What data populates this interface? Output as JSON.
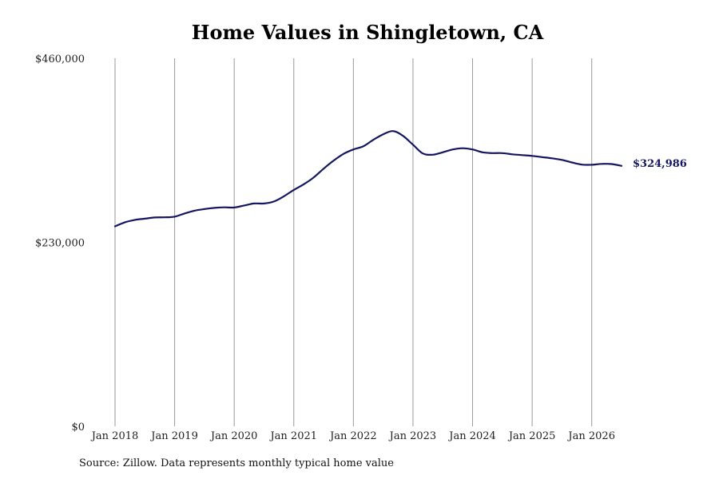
{
  "chart_data": {
    "type": "line",
    "title": "Home Values in Shingletown, CA",
    "y_tick_labels": [
      "$460,000",
      "$230,000",
      "$0"
    ],
    "y_ticks": [
      460000,
      230000,
      0
    ],
    "ylim": [
      0,
      460000
    ],
    "x_tick_labels": [
      "Jan 2018",
      "Jan 2019",
      "Jan 2020",
      "Jan 2021",
      "Jan 2022",
      "Jan 2023",
      "Jan 2024",
      "Jan 2025",
      "Jan 2026"
    ],
    "x_ticks": [
      "2018-01",
      "2019-01",
      "2020-01",
      "2021-01",
      "2022-01",
      "2023-01",
      "2024-01",
      "2025-01",
      "2026-01"
    ],
    "xlim": [
      "2018-01",
      "2026-07"
    ],
    "grid": "vertical",
    "line_color": "#141661",
    "end_label": "$324,986",
    "series": [
      {
        "x": [
          "2018-01",
          "2018-03",
          "2018-05",
          "2018-07",
          "2018-09",
          "2018-11",
          "2019-01",
          "2019-03",
          "2019-05",
          "2019-07",
          "2019-09",
          "2019-11",
          "2020-01",
          "2020-03",
          "2020-05",
          "2020-07",
          "2020-09",
          "2020-11",
          "2021-01",
          "2021-03",
          "2021-05",
          "2021-07",
          "2021-09",
          "2021-11",
          "2022-01",
          "2022-03",
          "2022-05",
          "2022-07",
          "2022-09",
          "2022-11",
          "2023-01",
          "2023-03",
          "2023-05",
          "2023-07",
          "2023-09",
          "2023-11",
          "2024-01",
          "2024-03",
          "2024-05",
          "2024-07",
          "2024-09",
          "2024-11",
          "2025-01",
          "2025-03",
          "2025-05",
          "2025-07",
          "2025-09",
          "2025-11",
          "2026-01",
          "2026-03",
          "2026-05",
          "2026-07"
        ],
        "values": [
          250000,
          255000,
          258000,
          259500,
          261000,
          261200,
          262000,
          266000,
          269500,
          271500,
          273000,
          273700,
          273500,
          276000,
          278500,
          278500,
          281000,
          287500,
          295500,
          302500,
          311000,
          322000,
          332000,
          340500,
          346000,
          350000,
          358000,
          365000,
          369000,
          363000,
          352000,
          341000,
          339500,
          342500,
          346000,
          347500,
          346000,
          342500,
          341500,
          341500,
          340000,
          339000,
          338000,
          336500,
          335000,
          333000,
          329800,
          327100,
          326900,
          328000,
          327800,
          325500
        ]
      }
    ]
  },
  "footer": {
    "source": "Source: Zillow. Data represents monthly typical home value"
  }
}
